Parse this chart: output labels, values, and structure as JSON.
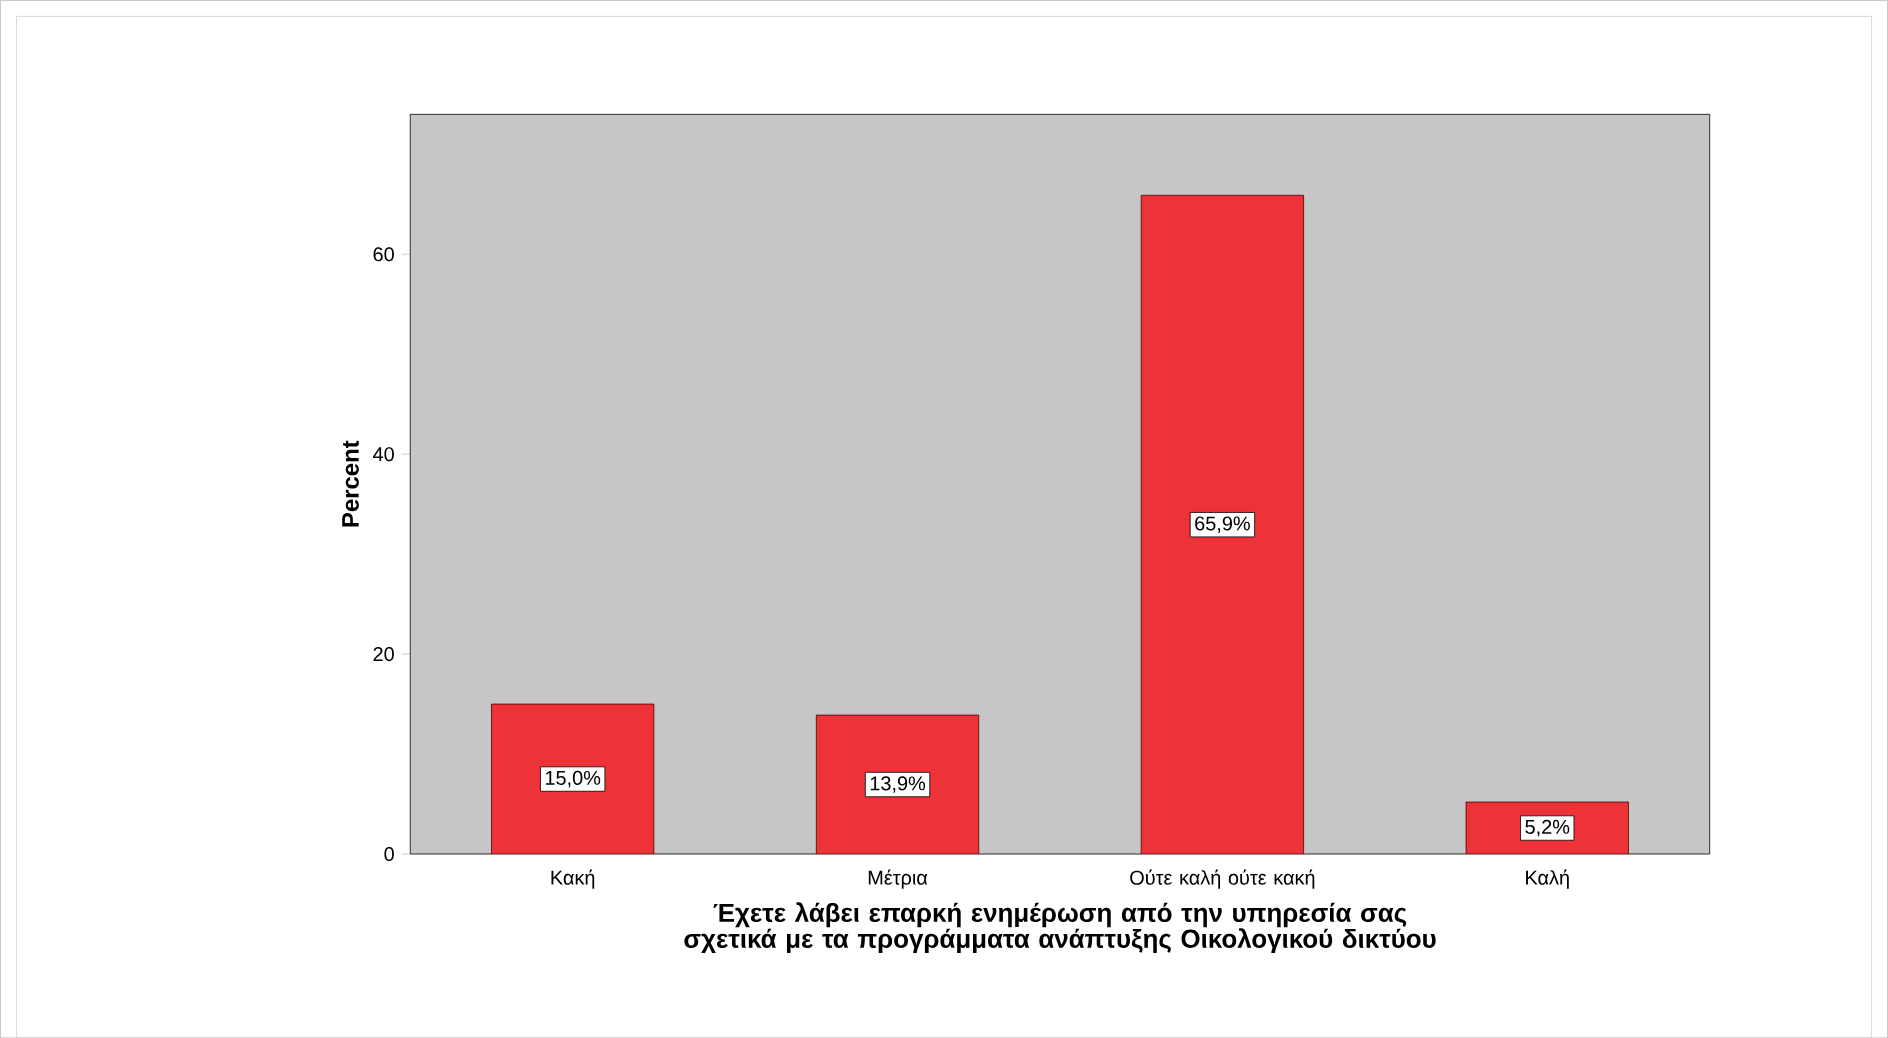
{
  "chart_data": {
    "type": "bar",
    "categories": [
      "Κακή",
      "Μέτρια",
      "Ούτε καλή ούτε κακή",
      "Καλή"
    ],
    "values": [
      15.0,
      13.9,
      65.9,
      5.2
    ],
    "value_labels": [
      "15,0%",
      "13,9%",
      "65,9%",
      "5,2%"
    ],
    "color": "#ee3338",
    "xlabel": "Έχετε λάβει επαρκή ενημέρωση από την υπηρεσία σας σχετικά με τα προγράμματα ανάπτυξης Οικολογικού δικτύου",
    "ylabel": "Percent",
    "ylim": [
      0,
      74
    ],
    "yticks": [
      0,
      20,
      40,
      60
    ],
    "grid": false
  }
}
